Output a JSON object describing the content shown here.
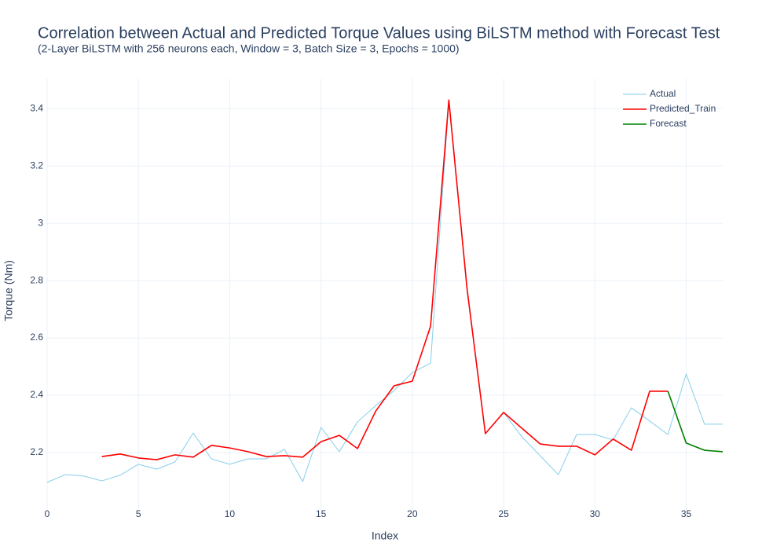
{
  "chart_data": {
    "type": "line",
    "title": "Correlation between Actual and Predicted Torque Values using BiLSTM method with Forecast Test",
    "subtitle": "(2-Layer BiLSTM with 256 neurons each, Window = 3, Batch Size = 3, Epochs = 1000)",
    "x_label": "Index",
    "y_label": "Torque (Nm)",
    "xlim": [
      0,
      37
    ],
    "ylim": [
      1.997,
      3.505
    ],
    "xticks": [
      0,
      5,
      10,
      15,
      20,
      25,
      30,
      35
    ],
    "yticks": [
      2.2,
      2.4,
      2.6,
      2.8,
      3,
      3.2,
      3.4
    ],
    "grid": true,
    "legend": "top-right",
    "series": [
      {
        "name": "Actual",
        "color": "#87ceeb",
        "width": 1,
        "x": [
          0,
          1,
          2,
          3,
          4,
          5,
          6,
          7,
          8,
          9,
          10,
          11,
          12,
          13,
          14,
          15,
          16,
          17,
          18,
          19,
          20,
          21,
          22,
          23,
          24,
          25,
          26,
          27,
          28,
          29,
          30,
          31,
          32,
          33,
          34,
          35,
          36,
          37
        ],
        "values": [
          2.096,
          2.123,
          2.118,
          2.101,
          2.121,
          2.159,
          2.142,
          2.167,
          2.268,
          2.178,
          2.159,
          2.178,
          2.178,
          2.211,
          2.099,
          2.288,
          2.203,
          2.307,
          2.364,
          2.416,
          2.479,
          2.512,
          3.422,
          2.778,
          2.266,
          2.34,
          2.255,
          2.189,
          2.123,
          2.263,
          2.263,
          2.244,
          2.356,
          2.31,
          2.263,
          2.474,
          2.299,
          2.299
        ]
      },
      {
        "name": "Predicted_Train",
        "color": "#ff0000",
        "width": 1.6,
        "x": [
          3,
          4,
          5,
          6,
          7,
          8,
          9,
          10,
          11,
          12,
          13,
          14,
          15,
          16,
          17,
          18,
          19,
          20,
          21,
          22,
          23,
          24,
          25,
          26,
          27,
          28,
          29,
          30,
          31,
          32,
          33,
          34
        ],
        "values": [
          2.186,
          2.195,
          2.181,
          2.175,
          2.192,
          2.184,
          2.225,
          2.216,
          2.203,
          2.186,
          2.189,
          2.184,
          2.238,
          2.26,
          2.214,
          2.345,
          2.433,
          2.449,
          2.641,
          3.43,
          2.77,
          2.266,
          2.34,
          2.285,
          2.23,
          2.222,
          2.222,
          2.192,
          2.247,
          2.208,
          2.414,
          2.414
        ]
      },
      {
        "name": "Forecast",
        "color": "#008000",
        "width": 1.6,
        "x": [
          34,
          35,
          36,
          37
        ],
        "values": [
          2.414,
          2.233,
          2.208,
          2.203
        ]
      }
    ]
  }
}
